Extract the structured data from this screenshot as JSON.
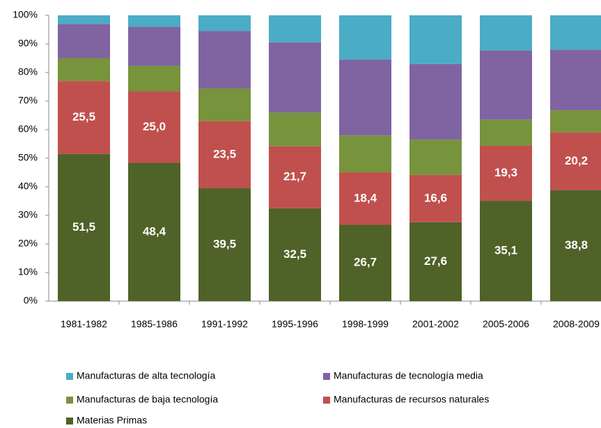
{
  "chart_data": {
    "type": "stacked_bar",
    "categories": [
      "1981-1982",
      "1985-1986",
      "1991-1992",
      "1995-1996",
      "1998-1999",
      "2001-2002",
      "2005-2006",
      "2008-2009"
    ],
    "series": [
      {
        "name": "Materias Primas",
        "color": "#4f6228",
        "values": [
          51.5,
          48.4,
          39.5,
          32.5,
          26.7,
          27.6,
          35.1,
          38.8
        ],
        "value_labels": [
          "51,5",
          "48,4",
          "39,5",
          "32,5",
          "26,7",
          "27,6",
          "35,1",
          "38,8"
        ]
      },
      {
        "name": "Manufacturas de recursos naturales",
        "color": "#c0504d",
        "values": [
          25.5,
          25.0,
          23.5,
          21.7,
          18.4,
          16.6,
          19.3,
          20.2
        ],
        "value_labels": [
          "25,5",
          "25,0",
          "23,5",
          "21,7",
          "18,4",
          "16,6",
          "19,3",
          "20,2"
        ]
      },
      {
        "name": "Manufacturas de baja tecnología",
        "color": "#77933c",
        "values": [
          8,
          8.9,
          11.4,
          11.8,
          12.9,
          12.3,
          9.1,
          7.8
        ]
      },
      {
        "name": "Manufacturas de tecnología media",
        "color": "#8064a2",
        "values": [
          12,
          13.7,
          20.1,
          24.5,
          26.5,
          26.5,
          24.2,
          21.2
        ]
      },
      {
        "name": "Manufacturas de alta tecnología",
        "color": "#4bacc6",
        "values": [
          3,
          4,
          5.5,
          9.5,
          15.5,
          17,
          12.3,
          12
        ]
      }
    ],
    "ylim": [
      0,
      100
    ],
    "yticks": [
      {
        "value": 0,
        "label": "0%"
      },
      {
        "value": 10,
        "label": "10%"
      },
      {
        "value": 20,
        "label": "20%"
      },
      {
        "value": 30,
        "label": "30%"
      },
      {
        "value": 40,
        "label": "40%"
      },
      {
        "value": 50,
        "label": "50%"
      },
      {
        "value": 60,
        "label": "60%"
      },
      {
        "value": 70,
        "label": "70%"
      },
      {
        "value": 80,
        "label": "80%"
      },
      {
        "value": 90,
        "label": "90%"
      },
      {
        "value": 100,
        "label": "100%"
      }
    ]
  }
}
